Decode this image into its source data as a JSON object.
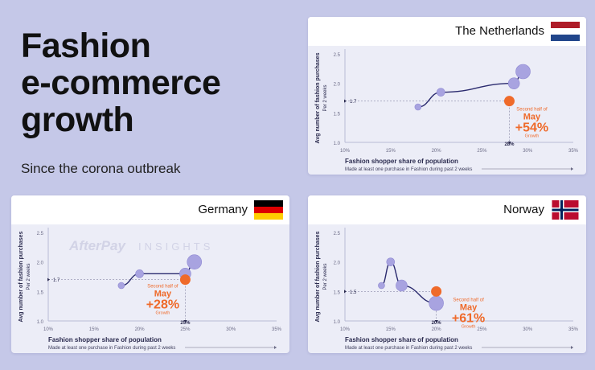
{
  "headline": {
    "line1": "Fashion",
    "line2": "e-commerce",
    "line3": "growth",
    "subtitle": "Since the corona outbreak"
  },
  "colors": {
    "background": "#c5c8e8",
    "bubble": "#a8a3e0",
    "highlight": "#ef6a2a",
    "curve": "#2a2a6e"
  },
  "watermark": {
    "brand": "AfterPay",
    "suffix": "INSIGHTS"
  },
  "chart_data": [
    {
      "type": "scatter",
      "country": "The Netherlands",
      "flag": [
        "#ae1c28",
        "#ffffff",
        "#21468b"
      ],
      "xlabel": "Fashion shopper share of population",
      "xsublabel": "Made at least one purchase in Fashion during past 2 weeks",
      "ylabel": "Avg number of fashion purchases",
      "ysublabel": "Per 2 weeks",
      "x_ticks": [
        "10%",
        "15%",
        "20%",
        "25%",
        "30%",
        "35%"
      ],
      "y_ticks": [
        "1.0",
        "1.5",
        "2.0",
        "2.5"
      ],
      "xlim": [
        10,
        35
      ],
      "ylim": [
        1.0,
        2.5
      ],
      "baseline": 1.7,
      "baseline_label": "1.7",
      "marker_x": 28,
      "marker_label": "28%",
      "points": [
        [
          18,
          1.6
        ],
        [
          20.5,
          1.85
        ],
        [
          28.5,
          2.0
        ],
        [
          29.5,
          2.2
        ]
      ],
      "highlight_point": [
        28,
        1.7
      ],
      "annotation": {
        "line1": "Second half of",
        "line2": "May",
        "value": "+54%",
        "line4": "Growth"
      }
    },
    {
      "type": "scatter",
      "country": "Germany",
      "flag": [
        "#000000",
        "#dd0000",
        "#ffce00"
      ],
      "xlabel": "Fashion shopper share of population",
      "xsublabel": "Made at least one purchase in Fashion during past 2 weeks",
      "ylabel": "Avg number of fashion purchases",
      "ysublabel": "Per 2 weeks",
      "x_ticks": [
        "10%",
        "15%",
        "20%",
        "25%",
        "30%",
        "35%"
      ],
      "y_ticks": [
        "1.0",
        "1.5",
        "2.0",
        "2.5"
      ],
      "xlim": [
        10,
        35
      ],
      "ylim": [
        1.0,
        2.5
      ],
      "baseline": 1.7,
      "baseline_label": "1.7",
      "marker_x": 25,
      "marker_label": "25%",
      "points": [
        [
          18,
          1.6
        ],
        [
          20,
          1.8
        ],
        [
          25,
          1.8
        ],
        [
          26,
          2.0
        ]
      ],
      "highlight_point": [
        25,
        1.7
      ],
      "annotation": {
        "line1": "Second half of",
        "line2": "May",
        "value": "+28%",
        "line4": "Growth"
      }
    },
    {
      "type": "scatter",
      "country": "Norway",
      "flag": [
        "#ba0c2f",
        "#ffffff",
        "#00205b"
      ],
      "xlabel": "Fashion shopper share of population",
      "xsublabel": "Made at least one purchase in Fashion during past 2 weeks",
      "ylabel": "Avg number of fashion purchases",
      "ysublabel": "Per 2 weeks",
      "x_ticks": [
        "10%",
        "15%",
        "20%",
        "25%",
        "30%",
        "35%"
      ],
      "y_ticks": [
        "1.0",
        "1.5",
        "2.0",
        "2.5"
      ],
      "xlim": [
        10,
        35
      ],
      "ylim": [
        1.0,
        2.5
      ],
      "baseline": 1.5,
      "baseline_label": "1.5",
      "marker_x": 20,
      "marker_label": "20%",
      "points": [
        [
          14,
          1.6
        ],
        [
          15,
          2.0
        ],
        [
          16.2,
          1.6
        ],
        [
          20,
          1.3
        ]
      ],
      "highlight_point": [
        20,
        1.5
      ],
      "annotation": {
        "line1": "Second half of",
        "line2": "May",
        "value": "+61%",
        "line4": "Growth"
      }
    }
  ]
}
